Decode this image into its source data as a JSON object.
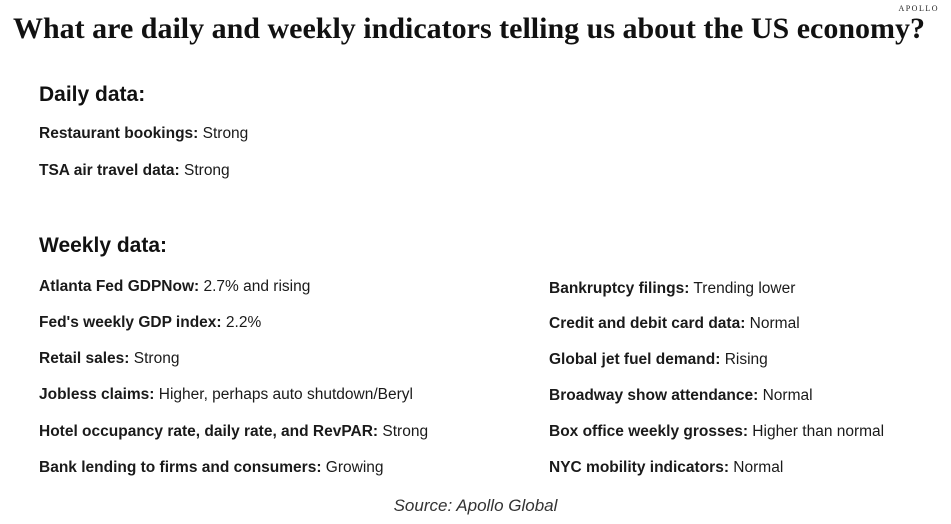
{
  "brand": "APOLLO",
  "title": "What are daily and weekly indicators telling us about the US economy?",
  "daily": {
    "heading": "Daily data:",
    "items": [
      {
        "label": "Restaurant bookings:",
        "value": " Strong"
      },
      {
        "label": "TSA air travel data:",
        "value": " Strong"
      }
    ]
  },
  "weekly": {
    "heading": "Weekly data:",
    "left": [
      {
        "label": "Atlanta Fed GDPNow:",
        "value": " 2.7% and rising"
      },
      {
        "label": "Fed's weekly GDP index:",
        "value": " 2.2%"
      },
      {
        "label": "Retail sales:",
        "value": " Strong"
      },
      {
        "label": "Jobless claims:",
        "value": " Higher, perhaps auto shutdown/Beryl"
      },
      {
        "label": "Hotel occupancy rate, daily rate, and RevPAR:",
        "value": " Strong"
      },
      {
        "label": "Bank lending to firms and consumers:",
        "value": " Growing"
      }
    ],
    "right": [
      {
        "label": "Bankruptcy filings:",
        "value": " Trending lower"
      },
      {
        "label": "Credit and debit card data:",
        "value": " Normal"
      },
      {
        "label": "Global jet fuel demand:",
        "value": " Rising"
      },
      {
        "label": "Broadway show attendance:",
        "value": " Normal"
      },
      {
        "label": "Box office weekly grosses:",
        "value": " Higher than normal"
      },
      {
        "label": "NYC mobility indicators:",
        "value": " Normal"
      }
    ]
  },
  "source": "Source: Apollo Global"
}
